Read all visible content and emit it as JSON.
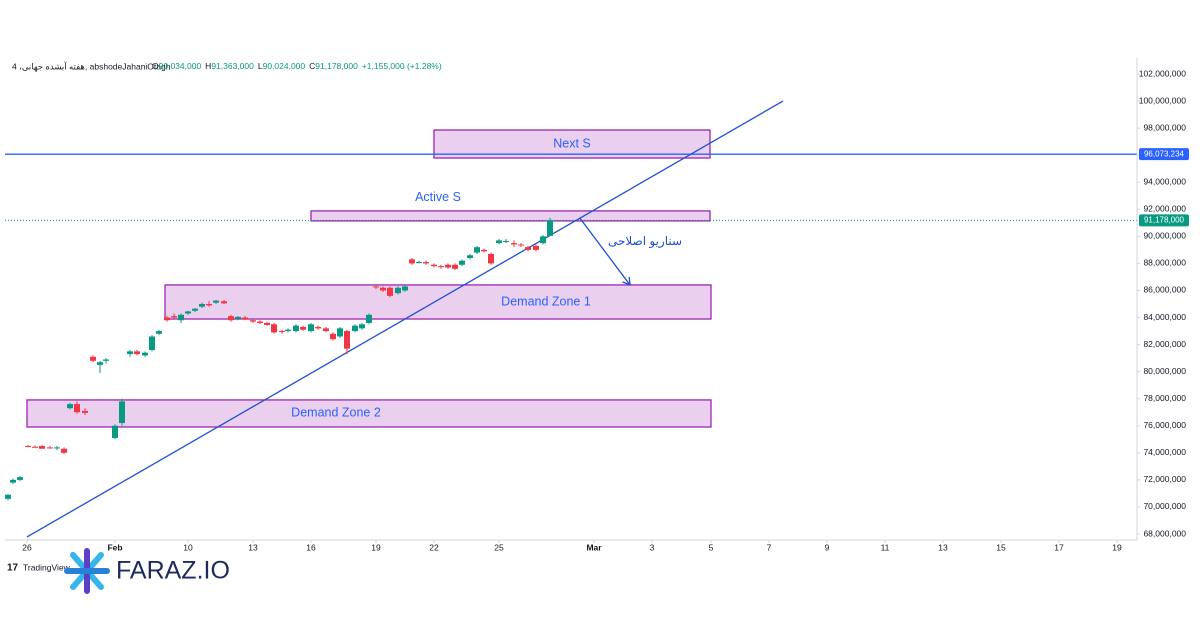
{
  "header": {
    "title": "4 ،هفته آبشده جهانی, abshodeJahaniOtagh",
    "ohlc": [
      {
        "label": "O",
        "value": "90,034,000"
      },
      {
        "label": "H",
        "value": "91,363,000"
      },
      {
        "label": "L",
        "value": "90,024,000"
      },
      {
        "label": "C",
        "value": "91,178,000"
      }
    ],
    "change": "+1,155,000 (+1.28%)"
  },
  "chart_data": {
    "type": "candlestick",
    "x": [
      3,
      8,
      15,
      23,
      30,
      37,
      45,
      52,
      59,
      65,
      72,
      80,
      88,
      95,
      101,
      110,
      117,
      125,
      132,
      140,
      147,
      154,
      162,
      169,
      176,
      183,
      190,
      197,
      204,
      211,
      219,
      226,
      233,
      240,
      248,
      255,
      262,
      269,
      277,
      283,
      291,
      298,
      306,
      313,
      321,
      328,
      335,
      342,
      350,
      357,
      364,
      371,
      378,
      385,
      393,
      400,
      407,
      414,
      421,
      429,
      436,
      443,
      450,
      457,
      465,
      472,
      479,
      486,
      494,
      501,
      509,
      516,
      523,
      531,
      538,
      545
    ],
    "open": [
      70600000,
      71800000,
      72000000,
      74500000,
      74450000,
      74500000,
      74400000,
      74350000,
      74300000,
      77300000,
      77600000,
      77100000,
      81100000,
      80500000,
      80800000,
      75100000,
      76200000,
      81300000,
      81500000,
      81200000,
      81600000,
      82800000,
      84000000,
      84100000,
      83800000,
      84300000,
      84500000,
      84800000,
      85000000,
      85100000,
      85200000,
      84100000,
      83900000,
      84000000,
      83800000,
      83700000,
      83600000,
      83500000,
      83000000,
      83000000,
      83000000,
      83300000,
      83000000,
      83300000,
      83200000,
      82800000,
      82600000,
      83000000,
      83000000,
      83200000,
      83600000,
      86300000,
      86200000,
      86200000,
      85800000,
      86000000,
      88300000,
      88050000,
      88100000,
      87900000,
      87800000,
      87900000,
      87900000,
      87900000,
      88400000,
      88800000,
      89000000,
      88700000,
      89500000,
      89600000,
      89500000,
      89400000,
      89200000,
      89300000,
      89500000,
      90034000
    ],
    "high": [
      70950000,
      72100000,
      72300000,
      74600000,
      74550000,
      74600000,
      74500000,
      74500000,
      74400000,
      77700000,
      77800000,
      77300000,
      81200000,
      80800000,
      81000000,
      76100000,
      78000000,
      81600000,
      81600000,
      81500000,
      82700000,
      83100000,
      84100000,
      84300000,
      84300000,
      84500000,
      84700000,
      85100000,
      85200000,
      85300000,
      85300000,
      84200000,
      84100000,
      84100000,
      83900000,
      83800000,
      83700000,
      83600000,
      83100000,
      83200000,
      83500000,
      83400000,
      83600000,
      83400000,
      83300000,
      82900000,
      83300000,
      83100000,
      83500000,
      83600000,
      84300000,
      86400000,
      86300000,
      86300000,
      86300000,
      86400000,
      88400000,
      88200000,
      88200000,
      88000000,
      87900000,
      88000000,
      88000000,
      88300000,
      88700000,
      89300000,
      89100000,
      88800000,
      89800000,
      89800000,
      89700000,
      89500000,
      89300000,
      89400000,
      90100000,
      91363000
    ],
    "low": [
      70500000,
      71700000,
      71900000,
      74400000,
      74350000,
      74300000,
      74300000,
      74200000,
      73900000,
      77200000,
      76900000,
      76800000,
      80700000,
      79900000,
      80600000,
      75000000,
      76000000,
      81100000,
      81200000,
      81100000,
      81500000,
      82700000,
      83700000,
      83900000,
      83600000,
      84200000,
      84400000,
      84700000,
      84800000,
      85000000,
      85000000,
      83700000,
      83800000,
      83800000,
      83600000,
      83500000,
      83400000,
      82800000,
      82800000,
      82900000,
      82900000,
      83000000,
      82900000,
      83100000,
      82900000,
      82300000,
      82500000,
      81300000,
      82900000,
      83100000,
      83500000,
      86100000,
      85900000,
      85500000,
      85700000,
      85900000,
      87900000,
      88000000,
      87900000,
      87700000,
      87600000,
      87600000,
      87500000,
      87800000,
      88300000,
      88700000,
      88800000,
      87900000,
      89400000,
      89500000,
      89200000,
      89200000,
      88900000,
      88900000,
      89400000,
      90024000
    ],
    "close": [
      70900000,
      72000000,
      72200000,
      74450000,
      74400000,
      74300000,
      74350000,
      74400000,
      74000000,
      77600000,
      77000000,
      76950000,
      80800000,
      80700000,
      80900000,
      76000000,
      77800000,
      81500000,
      81300000,
      81400000,
      82600000,
      83000000,
      83800000,
      84000000,
      84200000,
      84450000,
      84650000,
      85000000,
      84900000,
      85250000,
      85050000,
      83800000,
      84050000,
      83850000,
      83700000,
      83600000,
      83450000,
      82900000,
      82950000,
      83100000,
      83400000,
      83100000,
      83500000,
      83200000,
      83000000,
      82400000,
      83200000,
      81700000,
      83400000,
      83500000,
      84200000,
      86250000,
      86000000,
      85600000,
      86200000,
      86300000,
      88000000,
      88100000,
      88000000,
      87800000,
      87750000,
      87700000,
      87600000,
      88200000,
      88600000,
      89200000,
      88900000,
      88000000,
      89700000,
      89650000,
      89400000,
      89350000,
      89000000,
      89000000,
      90000000,
      91178000
    ],
    "up_color": "#089981",
    "down_color": "#f23645",
    "xlim": [
      0,
      1130
    ],
    "ylim": [
      68000000,
      102000000
    ],
    "xticks": [
      {
        "value": 22,
        "label": "26"
      },
      {
        "value": 110,
        "label": "Feb"
      },
      {
        "value": 183,
        "label": "10"
      },
      {
        "value": 248,
        "label": "13"
      },
      {
        "value": 306,
        "label": "16"
      },
      {
        "value": 371,
        "label": "19"
      },
      {
        "value": 429,
        "label": "22"
      },
      {
        "value": 494,
        "label": "25"
      },
      {
        "value": 589,
        "label": "Mar"
      },
      {
        "value": 647,
        "label": "3"
      },
      {
        "value": 706,
        "label": "5"
      },
      {
        "value": 764,
        "label": "7"
      },
      {
        "value": 822,
        "label": "9"
      },
      {
        "value": 880,
        "label": "11"
      },
      {
        "value": 938,
        "label": "13"
      },
      {
        "value": 996,
        "label": "15"
      },
      {
        "value": 1054,
        "label": "17"
      },
      {
        "value": 1112,
        "label": "19"
      }
    ],
    "yticks": [
      {
        "value": 68000000,
        "label": "68,000,000"
      },
      {
        "value": 70000000,
        "label": "70,000,000"
      },
      {
        "value": 72000000,
        "label": "72,000,000"
      },
      {
        "value": 74000000,
        "label": "74,000,000"
      },
      {
        "value": 76000000,
        "label": "76,000,000"
      },
      {
        "value": 78000000,
        "label": "78,000,000"
      },
      {
        "value": 80000000,
        "label": "80,000,000"
      },
      {
        "value": 82000000,
        "label": "82,000,000"
      },
      {
        "value": 84000000,
        "label": "84,000,000"
      },
      {
        "value": 86000000,
        "label": "86,000,000"
      },
      {
        "value": 88000000,
        "label": "88,000,000"
      },
      {
        "value": 90000000,
        "label": "90,000,000"
      },
      {
        "value": 92000000,
        "label": "92,000,000"
      },
      {
        "value": 94000000,
        "label": "94,000,000"
      },
      {
        "value": 96000000,
        "label": "96,000,000"
      },
      {
        "value": 98000000,
        "label": "98,000,000"
      },
      {
        "value": 100000000,
        "label": "100,000,000"
      },
      {
        "value": 102000000,
        "label": "102,000,000"
      }
    ],
    "price_lines": [
      {
        "value": 96073234,
        "label": "96,073,234",
        "color": "#2962ff",
        "style": "solid"
      },
      {
        "value": 91178000,
        "label": "91,178,000",
        "color": "#089981",
        "style": "dotted"
      }
    ],
    "zones": [
      {
        "label": "Next S",
        "x": [
          429,
          705
        ],
        "y": [
          95790000,
          97860000
        ],
        "label_x": 567,
        "label_above": false
      },
      {
        "label": "Active S",
        "x": [
          306,
          705
        ],
        "y": [
          91140000,
          91880000
        ],
        "label_x": 433,
        "label_above": true
      },
      {
        "label": "Demand Zone 1",
        "x": [
          160,
          706
        ],
        "y": [
          83890000,
          86410000
        ],
        "label_x": 541,
        "label_above": false
      },
      {
        "label": "Demand Zone 2",
        "x": [
          22,
          706
        ],
        "y": [
          75910000,
          77910000
        ],
        "label_x": 331,
        "label_above": false
      }
    ],
    "trend_lines": [
      {
        "x": [
          22,
          778
        ],
        "y": [
          67780000,
          100000000
        ],
        "color": "#1e4fd6"
      }
    ],
    "arrows": [
      {
        "x": [
          575,
          625
        ],
        "y": [
          91340000,
          86410000
        ],
        "color": "#1e4fd6",
        "label": "سناریو اصلاحی",
        "label_x": 640,
        "label_y": 89580000
      }
    ]
  },
  "branding": {
    "tradingview": "TradingView",
    "site": "FARAZ.IO"
  }
}
